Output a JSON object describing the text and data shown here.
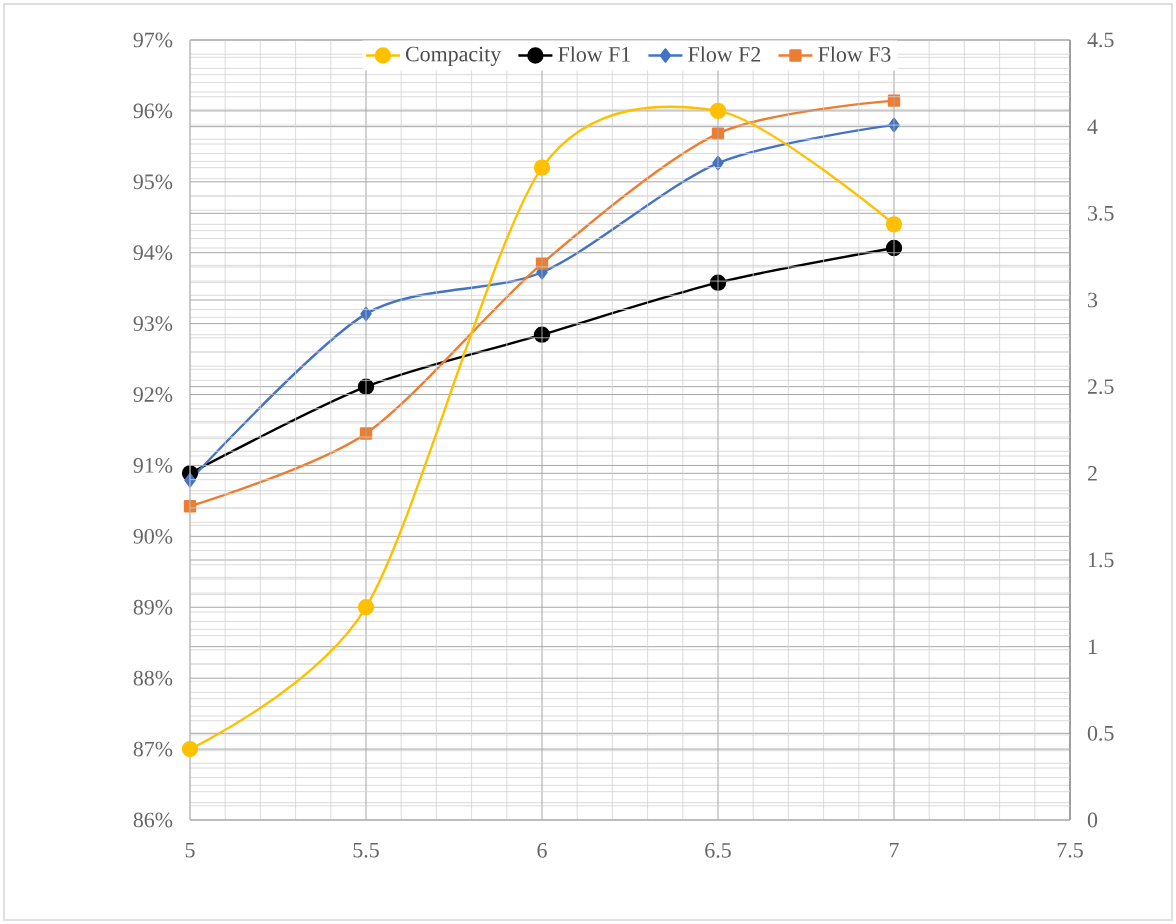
{
  "chart_data": {
    "type": "line",
    "x": [
      5,
      5.5,
      6,
      6.5,
      7
    ],
    "series": [
      {
        "name": "Compacity",
        "color": "#ffc000",
        "marker": "circle",
        "values": [
          87,
          89,
          95.2,
          96,
          94.4
        ]
      },
      {
        "name": "Flow F1",
        "color": "#000000",
        "marker": "circle",
        "axis": "y2",
        "values": [
          2.0,
          2.5,
          2.8,
          3.1,
          3.3
        ]
      },
      {
        "name": "Flow F2",
        "color": "#4472c4",
        "marker": "diamond",
        "axis": "y2",
        "values": [
          1.96,
          2.92,
          3.16,
          3.79,
          4.01
        ]
      },
      {
        "name": "Flow F3",
        "color": "#ed7d31",
        "marker": "square",
        "axis": "y2",
        "values": [
          1.81,
          2.23,
          3.21,
          3.96,
          4.15
        ]
      }
    ],
    "xlim": [
      5,
      7.5
    ],
    "xticks": [
      5,
      5.5,
      6,
      6.5,
      7,
      7.5
    ],
    "ylim": [
      86,
      97
    ],
    "yticks": [
      {
        "value": 86,
        "label": "86%"
      },
      {
        "value": 87,
        "label": "87%"
      },
      {
        "value": 88,
        "label": "88%"
      },
      {
        "value": 89,
        "label": "89%"
      },
      {
        "value": 90,
        "label": "90%"
      },
      {
        "value": 91,
        "label": "91%"
      },
      {
        "value": 92,
        "label": "92%"
      },
      {
        "value": 93,
        "label": "93%"
      },
      {
        "value": 94,
        "label": "94%"
      },
      {
        "value": 95,
        "label": "95%"
      },
      {
        "value": 96,
        "label": "96%"
      },
      {
        "value": 97,
        "label": "97%"
      }
    ],
    "y2lim": [
      0,
      4.5
    ],
    "y2ticks": [
      0,
      0.5,
      1,
      1.5,
      2,
      2.5,
      3,
      3.5,
      4,
      4.5
    ],
    "grid": true,
    "legend": "top",
    "line_style": "solid"
  }
}
